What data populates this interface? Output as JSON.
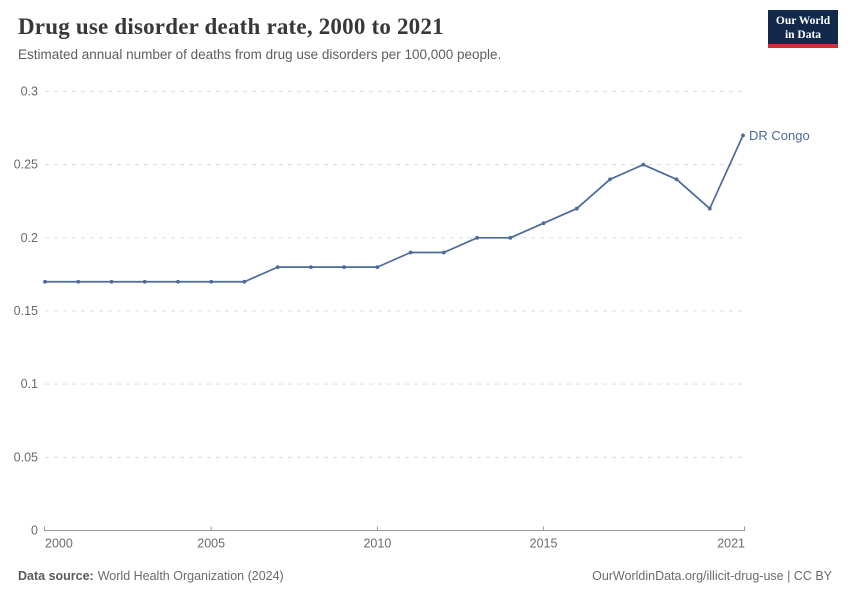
{
  "header": {
    "title": "Drug use disorder death rate, 2000 to 2021",
    "subtitle": "Estimated annual number of deaths from drug use disorders per 100,000 people."
  },
  "logo": {
    "line1": "Our World",
    "line2": "in Data",
    "bg_color": "#12294b",
    "bar_color": "#cf3134"
  },
  "chart_data": {
    "type": "line",
    "title": "Drug use disorder death rate, 2000 to 2021",
    "xlabel": "",
    "ylabel": "",
    "x": [
      2000,
      2001,
      2002,
      2003,
      2004,
      2005,
      2006,
      2007,
      2008,
      2009,
      2010,
      2011,
      2012,
      2013,
      2014,
      2015,
      2016,
      2017,
      2018,
      2019,
      2020,
      2021
    ],
    "series": [
      {
        "name": "DR Congo",
        "values": [
          0.17,
          0.17,
          0.17,
          0.17,
          0.17,
          0.17,
          0.17,
          0.18,
          0.18,
          0.18,
          0.18,
          0.19,
          0.19,
          0.2,
          0.2,
          0.21,
          0.22,
          0.24,
          0.25,
          0.24,
          0.22,
          0.27
        ],
        "color": "#4C6A9C"
      }
    ],
    "ylim": [
      0,
      0.3
    ],
    "yticks": [
      0,
      0.05,
      0.1,
      0.15,
      0.2,
      0.25,
      0.3
    ],
    "ytick_labels": [
      "0",
      "0.05",
      "0.1",
      "0.15",
      "0.2",
      "0.25",
      "0.3"
    ],
    "xticks": [
      2000,
      2005,
      2010,
      2015,
      2021
    ],
    "xtick_labels": [
      "2000",
      "2005",
      "2010",
      "2015",
      "2021"
    ],
    "grid": "dashed-horizontal",
    "legend_position": "end-of-line-label",
    "colors": {
      "grid": "#dcdcdc",
      "axis": "#999999",
      "tick_text": "#6b6b6b",
      "series_label": "#4C6A9C"
    }
  },
  "footer": {
    "source_label": "Data source:",
    "source_value": "World Health Organization (2024)",
    "link_text": "OurWorldinData.org/illicit-drug-use | CC BY"
  }
}
